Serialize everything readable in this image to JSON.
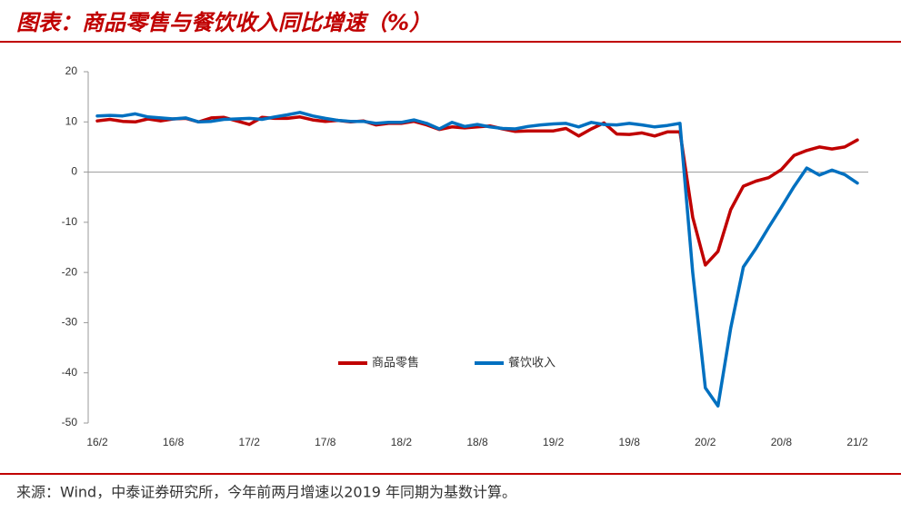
{
  "chart_data": {
    "type": "line",
    "title": "图表：商品零售与餐饮收入同比增速（%）",
    "source": "来源：Wind，中泰证券研究所，今年前两月增速以2019 年同期为基数计算。",
    "categories": [
      "16/2",
      null,
      null,
      null,
      null,
      null,
      "16/8",
      null,
      null,
      null,
      null,
      null,
      "17/2",
      null,
      null,
      null,
      null,
      null,
      "17/8",
      null,
      null,
      null,
      null,
      null,
      "18/2",
      null,
      null,
      null,
      null,
      null,
      "18/8",
      null,
      null,
      null,
      null,
      null,
      "19/2",
      null,
      null,
      null,
      null,
      null,
      "19/8",
      null,
      null,
      null,
      null,
      null,
      "20/2",
      null,
      null,
      null,
      null,
      null,
      "20/8",
      null,
      null,
      null,
      null,
      null,
      "21/2"
    ],
    "series": [
      {
        "name": "商品零售",
        "color": "#c00000",
        "values": [
          10.2,
          10.5,
          10.1,
          10.0,
          10.6,
          10.2,
          10.6,
          10.7,
          10.0,
          10.8,
          10.9,
          10.2,
          9.5,
          10.9,
          10.7,
          10.7,
          11.0,
          10.4,
          10.1,
          10.3,
          10.0,
          10.2,
          9.4,
          9.7,
          9.7,
          10.1,
          9.4,
          8.5,
          9.0,
          8.8,
          9.0,
          9.2,
          8.6,
          8.1,
          8.2,
          8.2,
          8.2,
          8.7,
          7.2,
          8.6,
          9.8,
          7.6,
          7.5,
          7.8,
          7.2,
          8.0,
          8.0,
          -9.0,
          -18.5,
          -15.8,
          -7.5,
          -2.8,
          -1.8,
          -1.1,
          0.5,
          3.3,
          4.3,
          5.0,
          4.6,
          5.0,
          6.4
        ]
      },
      {
        "name": "餐饮收入",
        "color": "#0070c0",
        "values": [
          11.2,
          11.3,
          11.2,
          11.6,
          11.0,
          10.8,
          10.6,
          10.8,
          10.0,
          10.1,
          10.5,
          10.6,
          10.7,
          10.5,
          11.0,
          11.4,
          11.9,
          11.2,
          10.7,
          10.3,
          10.1,
          10.1,
          9.7,
          9.9,
          9.9,
          10.4,
          9.7,
          8.6,
          9.9,
          9.1,
          9.5,
          9.0,
          8.7,
          8.6,
          9.1,
          9.4,
          9.6,
          9.7,
          9.0,
          9.9,
          9.5,
          9.4,
          9.7,
          9.4,
          9.0,
          9.3,
          9.7,
          -20.0,
          -43.0,
          -46.6,
          -31.1,
          -18.9,
          -15.2,
          -11.0,
          -7.0,
          -2.9,
          0.8,
          -0.6,
          0.4,
          -0.5,
          -2.2
        ]
      }
    ],
    "ylim": [
      -50,
      20
    ],
    "yticks": [
      20,
      10,
      0,
      -10,
      -20,
      -30,
      -40,
      -50
    ],
    "legend": "center",
    "grid": false
  }
}
